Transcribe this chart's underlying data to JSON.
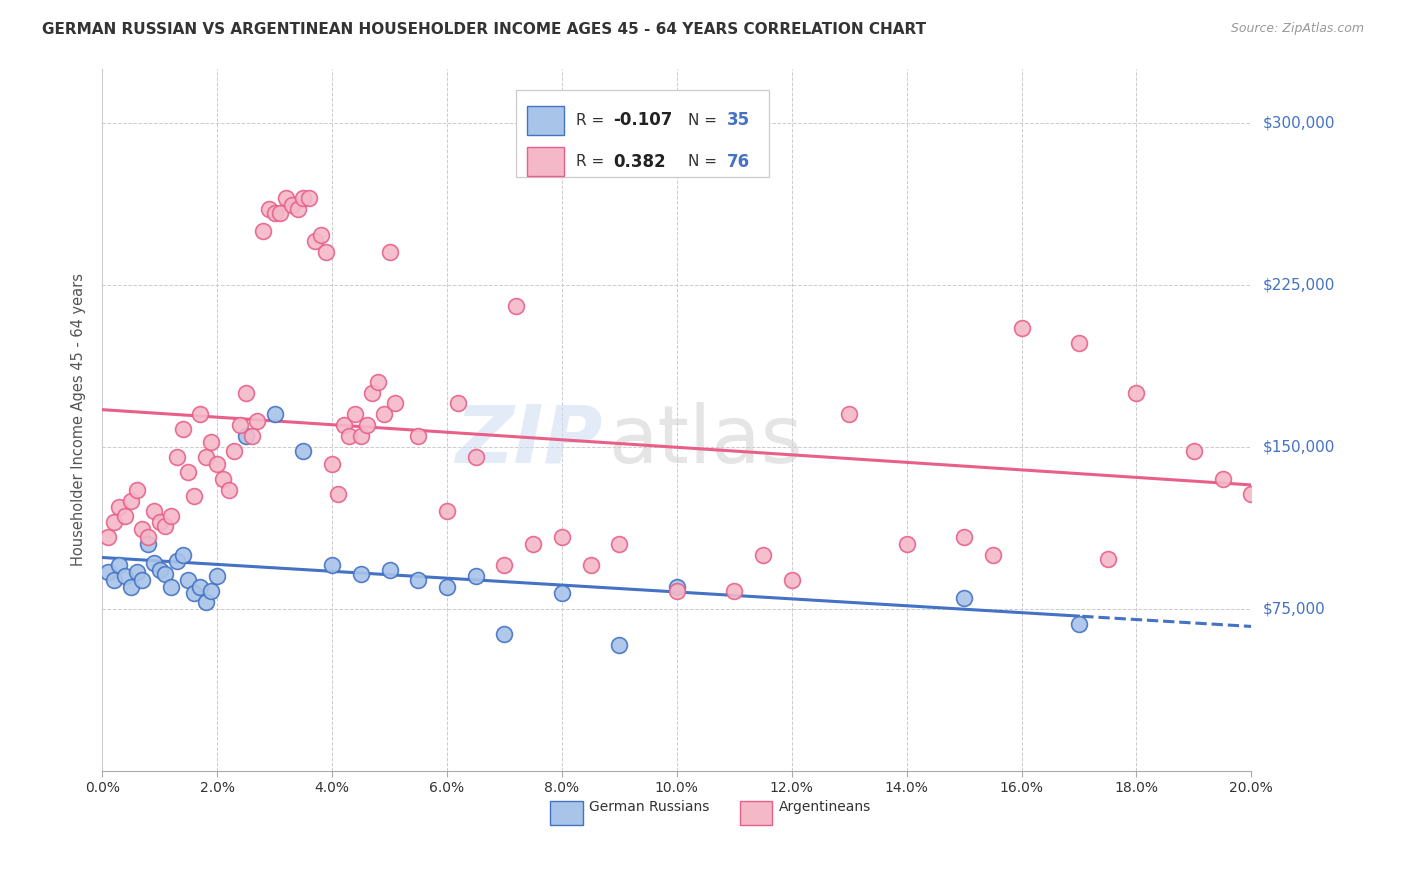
{
  "title": "GERMAN RUSSIAN VS ARGENTINEAN HOUSEHOLDER INCOME AGES 45 - 64 YEARS CORRELATION CHART",
  "source": "Source: ZipAtlas.com",
  "ylabel": "Householder Income Ages 45 - 64 years",
  "legend_r1": "R = -0.107",
  "legend_n1": "N = 35",
  "legend_r2": "R =  0.382",
  "legend_n2": "N = 76",
  "color_blue": "#a8c4e8",
  "color_pink": "#f4b8c8",
  "color_blue_dark": "#4472c4",
  "color_pink_dark": "#e8608a",
  "color_axis_blue": "#4472c4",
  "xmin": 0.0,
  "xmax": 0.2,
  "ymin": 0,
  "ymax": 325000,
  "yticks": [
    0,
    75000,
    150000,
    225000,
    300000
  ],
  "ytick_labels": [
    "",
    "$75,000",
    "$150,000",
    "$225,000",
    "$300,000"
  ],
  "blue_points": [
    [
      0.001,
      92000
    ],
    [
      0.002,
      88000
    ],
    [
      0.003,
      95000
    ],
    [
      0.004,
      90000
    ],
    [
      0.005,
      85000
    ],
    [
      0.006,
      92000
    ],
    [
      0.007,
      88000
    ],
    [
      0.008,
      105000
    ],
    [
      0.009,
      96000
    ],
    [
      0.01,
      93000
    ],
    [
      0.011,
      91000
    ],
    [
      0.012,
      85000
    ],
    [
      0.013,
      97000
    ],
    [
      0.014,
      100000
    ],
    [
      0.015,
      88000
    ],
    [
      0.016,
      82000
    ],
    [
      0.017,
      85000
    ],
    [
      0.018,
      78000
    ],
    [
      0.019,
      83000
    ],
    [
      0.02,
      90000
    ],
    [
      0.025,
      155000
    ],
    [
      0.03,
      165000
    ],
    [
      0.035,
      148000
    ],
    [
      0.04,
      95000
    ],
    [
      0.045,
      91000
    ],
    [
      0.05,
      93000
    ],
    [
      0.055,
      88000
    ],
    [
      0.06,
      85000
    ],
    [
      0.065,
      90000
    ],
    [
      0.07,
      63000
    ],
    [
      0.08,
      82000
    ],
    [
      0.09,
      58000
    ],
    [
      0.1,
      85000
    ],
    [
      0.15,
      80000
    ],
    [
      0.17,
      68000
    ]
  ],
  "pink_points": [
    [
      0.001,
      108000
    ],
    [
      0.002,
      115000
    ],
    [
      0.003,
      122000
    ],
    [
      0.004,
      118000
    ],
    [
      0.005,
      125000
    ],
    [
      0.006,
      130000
    ],
    [
      0.007,
      112000
    ],
    [
      0.008,
      108000
    ],
    [
      0.009,
      120000
    ],
    [
      0.01,
      115000
    ],
    [
      0.011,
      113000
    ],
    [
      0.012,
      118000
    ],
    [
      0.013,
      145000
    ],
    [
      0.014,
      158000
    ],
    [
      0.015,
      138000
    ],
    [
      0.016,
      127000
    ],
    [
      0.017,
      165000
    ],
    [
      0.018,
      145000
    ],
    [
      0.019,
      152000
    ],
    [
      0.02,
      142000
    ],
    [
      0.021,
      135000
    ],
    [
      0.022,
      130000
    ],
    [
      0.023,
      148000
    ],
    [
      0.024,
      160000
    ],
    [
      0.025,
      175000
    ],
    [
      0.026,
      155000
    ],
    [
      0.027,
      162000
    ],
    [
      0.028,
      250000
    ],
    [
      0.029,
      260000
    ],
    [
      0.03,
      258000
    ],
    [
      0.031,
      258000
    ],
    [
      0.032,
      265000
    ],
    [
      0.033,
      262000
    ],
    [
      0.034,
      260000
    ],
    [
      0.035,
      265000
    ],
    [
      0.036,
      265000
    ],
    [
      0.037,
      245000
    ],
    [
      0.038,
      248000
    ],
    [
      0.039,
      240000
    ],
    [
      0.04,
      142000
    ],
    [
      0.041,
      128000
    ],
    [
      0.042,
      160000
    ],
    [
      0.043,
      155000
    ],
    [
      0.044,
      165000
    ],
    [
      0.045,
      155000
    ],
    [
      0.046,
      160000
    ],
    [
      0.047,
      175000
    ],
    [
      0.048,
      180000
    ],
    [
      0.049,
      165000
    ],
    [
      0.05,
      240000
    ],
    [
      0.051,
      170000
    ],
    [
      0.055,
      155000
    ],
    [
      0.06,
      120000
    ],
    [
      0.062,
      170000
    ],
    [
      0.065,
      145000
    ],
    [
      0.07,
      95000
    ],
    [
      0.072,
      215000
    ],
    [
      0.075,
      105000
    ],
    [
      0.08,
      108000
    ],
    [
      0.085,
      95000
    ],
    [
      0.09,
      105000
    ],
    [
      0.1,
      83000
    ],
    [
      0.11,
      83000
    ],
    [
      0.115,
      100000
    ],
    [
      0.12,
      88000
    ],
    [
      0.13,
      165000
    ],
    [
      0.14,
      105000
    ],
    [
      0.15,
      108000
    ],
    [
      0.155,
      100000
    ],
    [
      0.16,
      205000
    ],
    [
      0.17,
      198000
    ],
    [
      0.175,
      98000
    ],
    [
      0.18,
      175000
    ],
    [
      0.19,
      148000
    ],
    [
      0.195,
      135000
    ],
    [
      0.2,
      128000
    ]
  ]
}
